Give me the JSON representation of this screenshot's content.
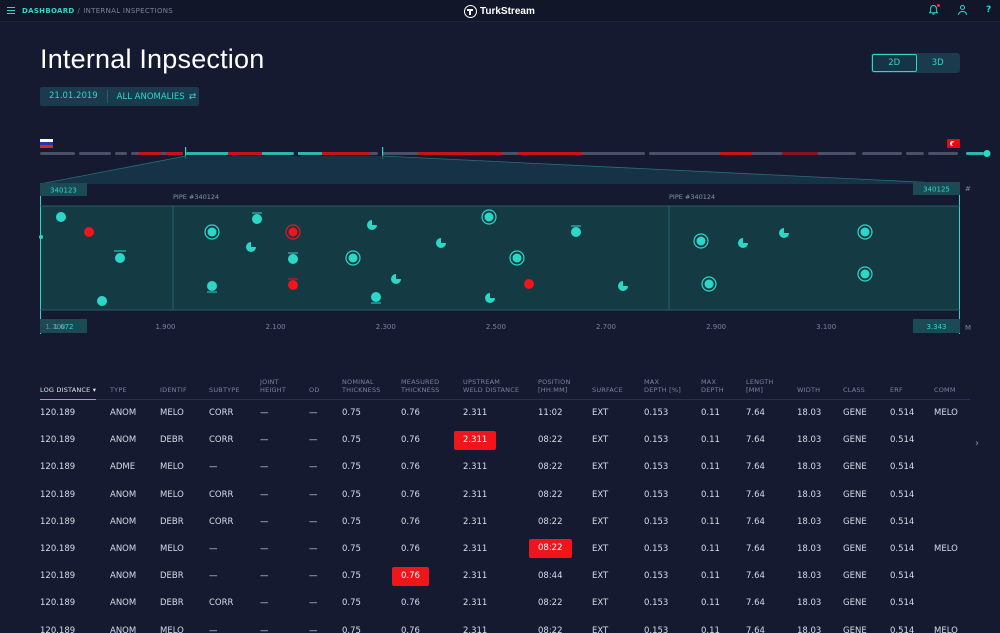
{
  "topbar": {
    "breadcrumb_home": "DASHBOARD",
    "breadcrumb_sep": "/",
    "breadcrumb_current": "INTERNAL INSPECTIONS",
    "logo_text": "TurkStream",
    "help_label": "?"
  },
  "page": {
    "title": "Internal Inpsection",
    "date_filter": "21.01.2019",
    "anomaly_filter": "ALL ANOMALIES",
    "view_2d": "2D",
    "view_3d": "3D"
  },
  "pipeline": {
    "pipe_start_label": "340123",
    "pipe_end_label": "340125",
    "pipe_left_name": "PIPE #340124",
    "pipe_right_name": "PIPE #340124",
    "hash_label": "#",
    "unit_label": "M",
    "axis_start": "1.672",
    "axis_end": "3.343",
    "ticks": [
      "1.700",
      "1.900",
      "2.100",
      "2.300",
      "2.500",
      "2.700",
      "2.900",
      "3.100"
    ],
    "tick_values": [
      1.7,
      1.9,
      2.1,
      2.3,
      2.5,
      2.7,
      2.9,
      3.1
    ],
    "range": [
      1.672,
      3.343
    ],
    "colors": {
      "teal": "#2bd8c8",
      "red": "#f0141b",
      "panel": "#143a44"
    }
  },
  "table": {
    "columns": [
      {
        "label": "LOG DISTANCE ▾",
        "sorted": true
      },
      {
        "label": "TYPE"
      },
      {
        "label": "IDENTIF"
      },
      {
        "label": "SUBTYPE"
      },
      {
        "label": "JOINT\nHEIGHT"
      },
      {
        "label": "OD"
      },
      {
        "label": "NOMINAL\nTHICKNESS"
      },
      {
        "label": "MEASURED\nTHICKNESS"
      },
      {
        "label": "UPSTREAM\nWELD DISTANCE"
      },
      {
        "label": "POSITION\n[HH:MM]"
      },
      {
        "label": "SURFACE"
      },
      {
        "label": "MAX\nDEPTH [%]"
      },
      {
        "label": "MAX\nDEPTH"
      },
      {
        "label": "LENGTH\n[MM]"
      },
      {
        "label": "WIDTH"
      },
      {
        "label": "CLASS"
      },
      {
        "label": "ERF"
      },
      {
        "label": "COMM"
      }
    ],
    "rows": [
      [
        "120.189",
        "ANOM",
        "MELO",
        "CORR",
        "—",
        "—",
        "0.75",
        "0.76",
        "2.311",
        "11:02",
        "EXT",
        "0.153",
        "0.11",
        "7.64",
        "18.03",
        "GENE",
        "0.514",
        "MELO"
      ],
      [
        "120.189",
        "ANOM",
        "DEBR",
        "CORR",
        "—",
        "—",
        "0.75",
        "0.76",
        "2.311",
        "08:22",
        "EXT",
        "0.153",
        "0.11",
        "7.64",
        "18.03",
        "GENE",
        "0.514",
        ""
      ],
      [
        "120.189",
        "ADME",
        "MELO",
        "—",
        "—",
        "—",
        "0.75",
        "0.76",
        "2.311",
        "08:22",
        "EXT",
        "0.153",
        "0.11",
        "7.64",
        "18.03",
        "GENE",
        "0.514",
        ""
      ],
      [
        "120.189",
        "ANOM",
        "MELO",
        "CORR",
        "—",
        "—",
        "0.75",
        "0.76",
        "2.311",
        "08:22",
        "EXT",
        "0.153",
        "0.11",
        "7.64",
        "18.03",
        "GENE",
        "0.514",
        ""
      ],
      [
        "120.189",
        "ANOM",
        "DEBR",
        "CORR",
        "—",
        "—",
        "0.75",
        "0.76",
        "2.311",
        "08:22",
        "EXT",
        "0.153",
        "0.11",
        "7.64",
        "18.03",
        "GENE",
        "0.514",
        ""
      ],
      [
        "120.189",
        "ANOM",
        "MELO",
        "—",
        "—",
        "—",
        "0.75",
        "0.76",
        "2.311",
        "08:22",
        "EXT",
        "0.153",
        "0.11",
        "7.64",
        "18.03",
        "GENE",
        "0.514",
        "MELO"
      ],
      [
        "120.189",
        "ANOM",
        "DEBR",
        "—",
        "—",
        "—",
        "0.75",
        "0.76",
        "2.311",
        "08:44",
        "EXT",
        "0.153",
        "0.11",
        "7.64",
        "18.03",
        "GENE",
        "0.514",
        ""
      ],
      [
        "120.189",
        "ANOM",
        "DEBR",
        "CORR",
        "—",
        "—",
        "0.75",
        "0.76",
        "2.311",
        "08:22",
        "EXT",
        "0.153",
        "0.11",
        "7.64",
        "18.03",
        "GENE",
        "0.514",
        ""
      ],
      [
        "120.189",
        "ANOM",
        "MELO",
        "—",
        "—",
        "—",
        "0.75",
        "0.76",
        "2.311",
        "08:22",
        "EXT",
        "0.153",
        "0.11",
        "7.64",
        "18.03",
        "GENE",
        "0.514",
        "MELO"
      ]
    ],
    "highlights": [
      {
        "row": 1,
        "col": 8
      },
      {
        "row": 5,
        "col": 9
      },
      {
        "row": 6,
        "col": 7
      }
    ]
  }
}
